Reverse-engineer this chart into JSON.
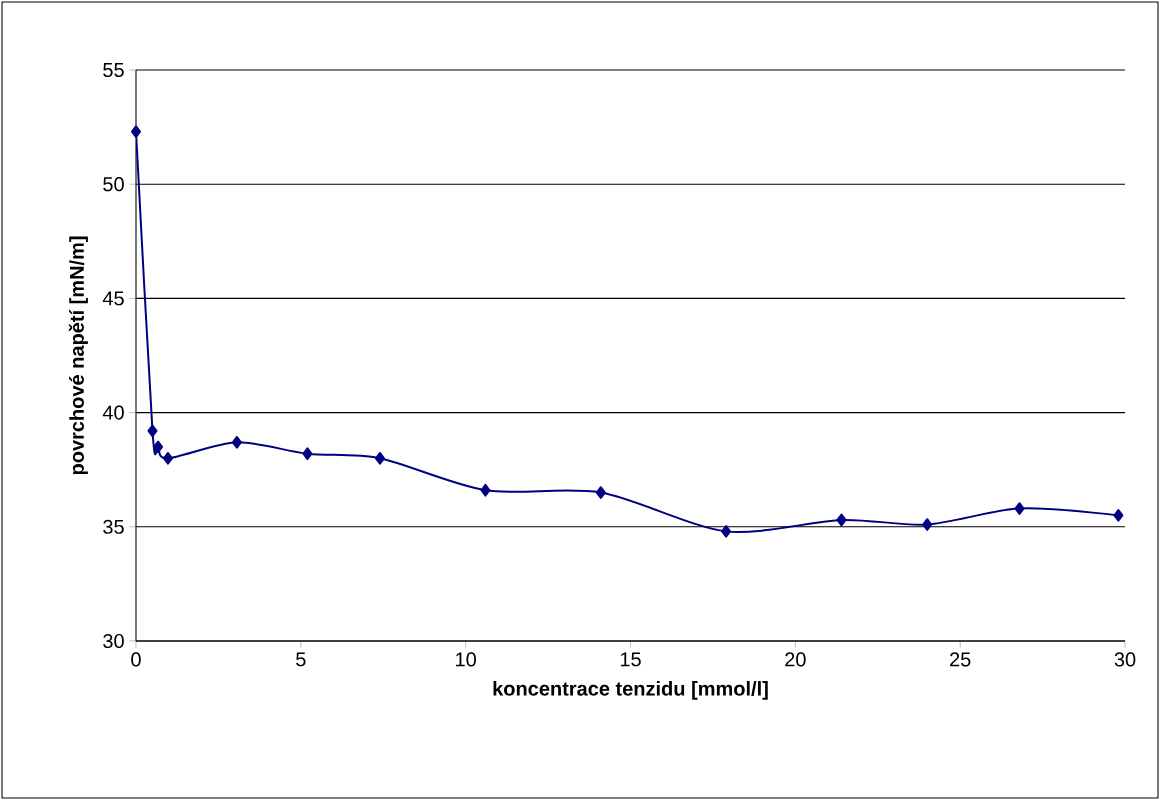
{
  "chart_data": {
    "type": "line",
    "xlabel": "koncentrace tenzidu [mmol/l]",
    "ylabel": "povrchové napětí [mN/m]",
    "series": [
      {
        "color": "#000080",
        "x": [
          0,
          0.5,
          0.67,
          0.97,
          3.06,
          5.2,
          7.4,
          10.6,
          14.1,
          17.9,
          21.4,
          24.0,
          26.8,
          29.8
        ],
        "values": [
          52.3,
          39.2,
          38.5,
          38.0,
          38.7,
          38.2,
          38.0,
          36.6,
          36.5,
          34.8,
          35.3,
          35.1,
          35.8,
          35.5
        ]
      }
    ],
    "xlim": [
      0,
      30
    ],
    "ylim": [
      30,
      55
    ],
    "xticks": [
      0,
      5,
      10,
      15,
      20,
      25,
      30
    ],
    "yticks": [
      30,
      35,
      40,
      45,
      50,
      55
    ],
    "grid": "y",
    "marker": "diamond",
    "line_style": "solid"
  }
}
